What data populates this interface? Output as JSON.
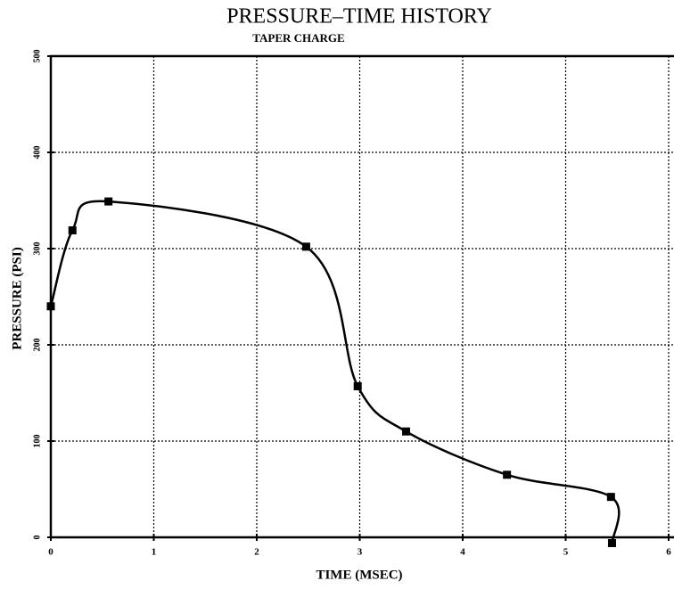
{
  "chart_data": {
    "type": "line",
    "title": "PRESSURE–TIME HISTORY",
    "subtitle": "TAPER CHARGE",
    "x_label": "TIME (MSEC)",
    "y_label": "PRESSURE (PSI)",
    "series": [
      {
        "name": "Pressure",
        "color": "#000000",
        "x": [
          0,
          0.21,
          0.56,
          2.48,
          2.98,
          3.45,
          4.43,
          5.44,
          5.45
        ],
        "values": [
          240,
          319,
          349,
          302,
          157,
          110,
          65,
          42,
          -6
        ]
      }
    ],
    "xlim": [
      0,
      6
    ],
    "ylim": [
      0,
      500
    ],
    "xticks": [
      0,
      1,
      2,
      3,
      4,
      5,
      6
    ],
    "yticks": [
      0,
      100,
      200,
      300,
      400,
      500
    ],
    "grid": true
  }
}
